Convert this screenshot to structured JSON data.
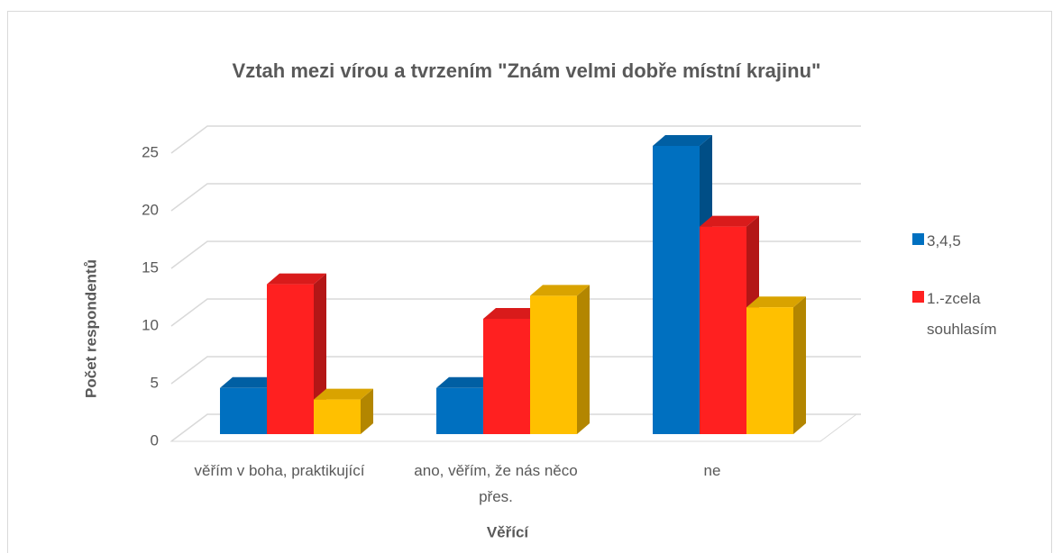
{
  "chart_data": {
    "type": "bar3d",
    "title": "Vztah mezi vírou a tvrzením \"Znám velmi dobře místní krajinu\"",
    "x_label": "Věřící",
    "y_label": "Počet respondentů",
    "categories": [
      "věřím v boha, praktikující",
      "ano, věřím, že nás něco přes.",
      "ne"
    ],
    "series": [
      {
        "name": "3,4,5",
        "color": "#0070c0",
        "values": [
          4,
          4,
          25
        ]
      },
      {
        "name": "1.-zcela souhlasím",
        "color": "#ff2020",
        "values": [
          13,
          10,
          18
        ]
      },
      {
        "color": "#ffc000",
        "values": [
          3,
          12,
          11
        ]
      }
    ],
    "ylim": [
      0,
      25
    ],
    "yticks": [
      0,
      5,
      10,
      15,
      20,
      25
    ],
    "grid": true
  }
}
